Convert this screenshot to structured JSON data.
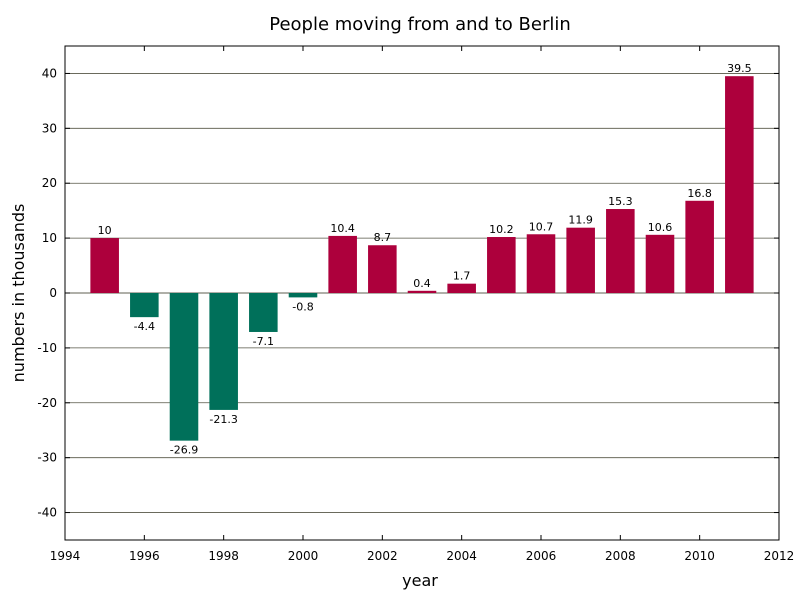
{
  "chart_data": {
    "type": "bar",
    "title": "People moving from and to Berlin",
    "xlabel": "year",
    "ylabel": "numbers in thousands",
    "xlim": [
      1994,
      2012
    ],
    "ylim": [
      -45,
      45
    ],
    "x_ticks": [
      1994,
      1996,
      1998,
      2000,
      2002,
      2004,
      2006,
      2008,
      2010,
      2012
    ],
    "y_ticks": [
      -40,
      -30,
      -20,
      -10,
      0,
      10,
      20,
      30,
      40
    ],
    "grid": true,
    "legend": "none",
    "colors": {
      "positive": "#ad003c",
      "negative": "#00705a"
    },
    "x": [
      1995,
      1996,
      1997,
      1998,
      1999,
      2000,
      2001,
      2002,
      2003,
      2004,
      2005,
      2006,
      2007,
      2008,
      2009,
      2010,
      2011
    ],
    "values": [
      10,
      -4.4,
      -26.9,
      -21.3,
      -7.1,
      -0.8,
      10.4,
      8.7,
      0.4,
      1.7,
      10.2,
      10.7,
      11.9,
      15.3,
      10.6,
      16.8,
      39.5
    ],
    "data_labels": [
      "10",
      "-4.4",
      "-26.9",
      "-21.3",
      "-7.1",
      "-0.8",
      "10.4",
      "8.7",
      "0.4",
      "1.7",
      "10.2",
      "10.7",
      "11.9",
      "15.3",
      "10.6",
      "16.8",
      "39.5"
    ]
  }
}
